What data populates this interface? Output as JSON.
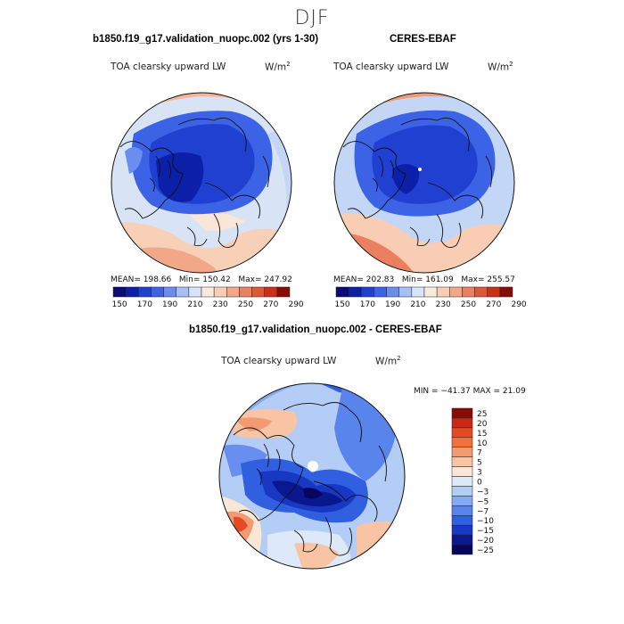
{
  "figure": {
    "season": "DJF",
    "variable": "TOA clearsky upward LW",
    "units_base": "W/m",
    "units_exp": "2"
  },
  "panels": {
    "model": {
      "title": "b1850.f19_g17.validation_nuopc.002 (yrs 1-30)",
      "mean_label": "MEAN=",
      "mean": "198.66",
      "min_label": "Min=",
      "min": "150.42",
      "max_label": "Max=",
      "max": "247.92"
    },
    "obs": {
      "title": "CERES-EBAF",
      "mean_label": "MEAN=",
      "mean": "202.83",
      "min_label": "Min=",
      "min": "161.09",
      "max_label": "Max=",
      "max": "255.57"
    },
    "diff": {
      "title": "b1850.f19_g17.validation_nuopc.002 - CERES-EBAF",
      "stats_text": "MIN = −41.37 MAX =  21.09"
    }
  },
  "colorbars": {
    "absolute": {
      "colors": [
        "#0a0a78",
        "#0c1fa8",
        "#1f40d0",
        "#3c62e6",
        "#6a8ef0",
        "#a6c0f5",
        "#d6e3f8",
        "#faeadc",
        "#f8cdb4",
        "#f2a888",
        "#ea8060",
        "#de5838",
        "#c83018",
        "#8c0a04"
      ],
      "tick_labels": [
        "150",
        "170",
        "190",
        "210",
        "230",
        "250",
        "270",
        "290"
      ]
    },
    "difference": {
      "colors": [
        "#8a0a04",
        "#c82814",
        "#e44a24",
        "#f07040",
        "#f49a70",
        "#f8c4a4",
        "#fae6d6",
        "#dde8f8",
        "#b4cdf6",
        "#86aaf2",
        "#5884ec",
        "#3060e0",
        "#1838c4",
        "#0a1890",
        "#06065e"
      ],
      "tick_labels": [
        "25",
        "20",
        "15",
        "10",
        "7",
        "5",
        "3",
        "0",
        "−3",
        "−5",
        "−7",
        "−10",
        "−15",
        "−20",
        "−25"
      ]
    }
  },
  "chart_data": [
    {
      "type": "heatmap",
      "projection": "north-polar-stereographic",
      "title": "b1850.f19_g17.validation_nuopc.002 (yrs 1-30)",
      "field": "TOA clearsky upward LW",
      "units": "W/m^2",
      "mean": 198.66,
      "min": 150.42,
      "max": 247.92,
      "contour_levels": [
        150,
        160,
        170,
        180,
        190,
        200,
        210,
        220,
        230,
        240,
        250,
        260,
        270,
        280,
        290
      ]
    },
    {
      "type": "heatmap",
      "projection": "north-polar-stereographic",
      "title": "CERES-EBAF",
      "field": "TOA clearsky upward LW",
      "units": "W/m^2",
      "mean": 202.83,
      "min": 161.09,
      "max": 255.57,
      "contour_levels": [
        150,
        160,
        170,
        180,
        190,
        200,
        210,
        220,
        230,
        240,
        250,
        260,
        270,
        280,
        290
      ]
    },
    {
      "type": "heatmap",
      "projection": "north-polar-stereographic",
      "title": "b1850.f19_g17.validation_nuopc.002 - CERES-EBAF",
      "field": "TOA clearsky upward LW",
      "units": "W/m^2",
      "min": -41.37,
      "max": 21.09,
      "contour_levels": [
        -25,
        -20,
        -15,
        -10,
        -7,
        -5,
        -3,
        0,
        3,
        5,
        7,
        10,
        15,
        20,
        25
      ]
    }
  ]
}
